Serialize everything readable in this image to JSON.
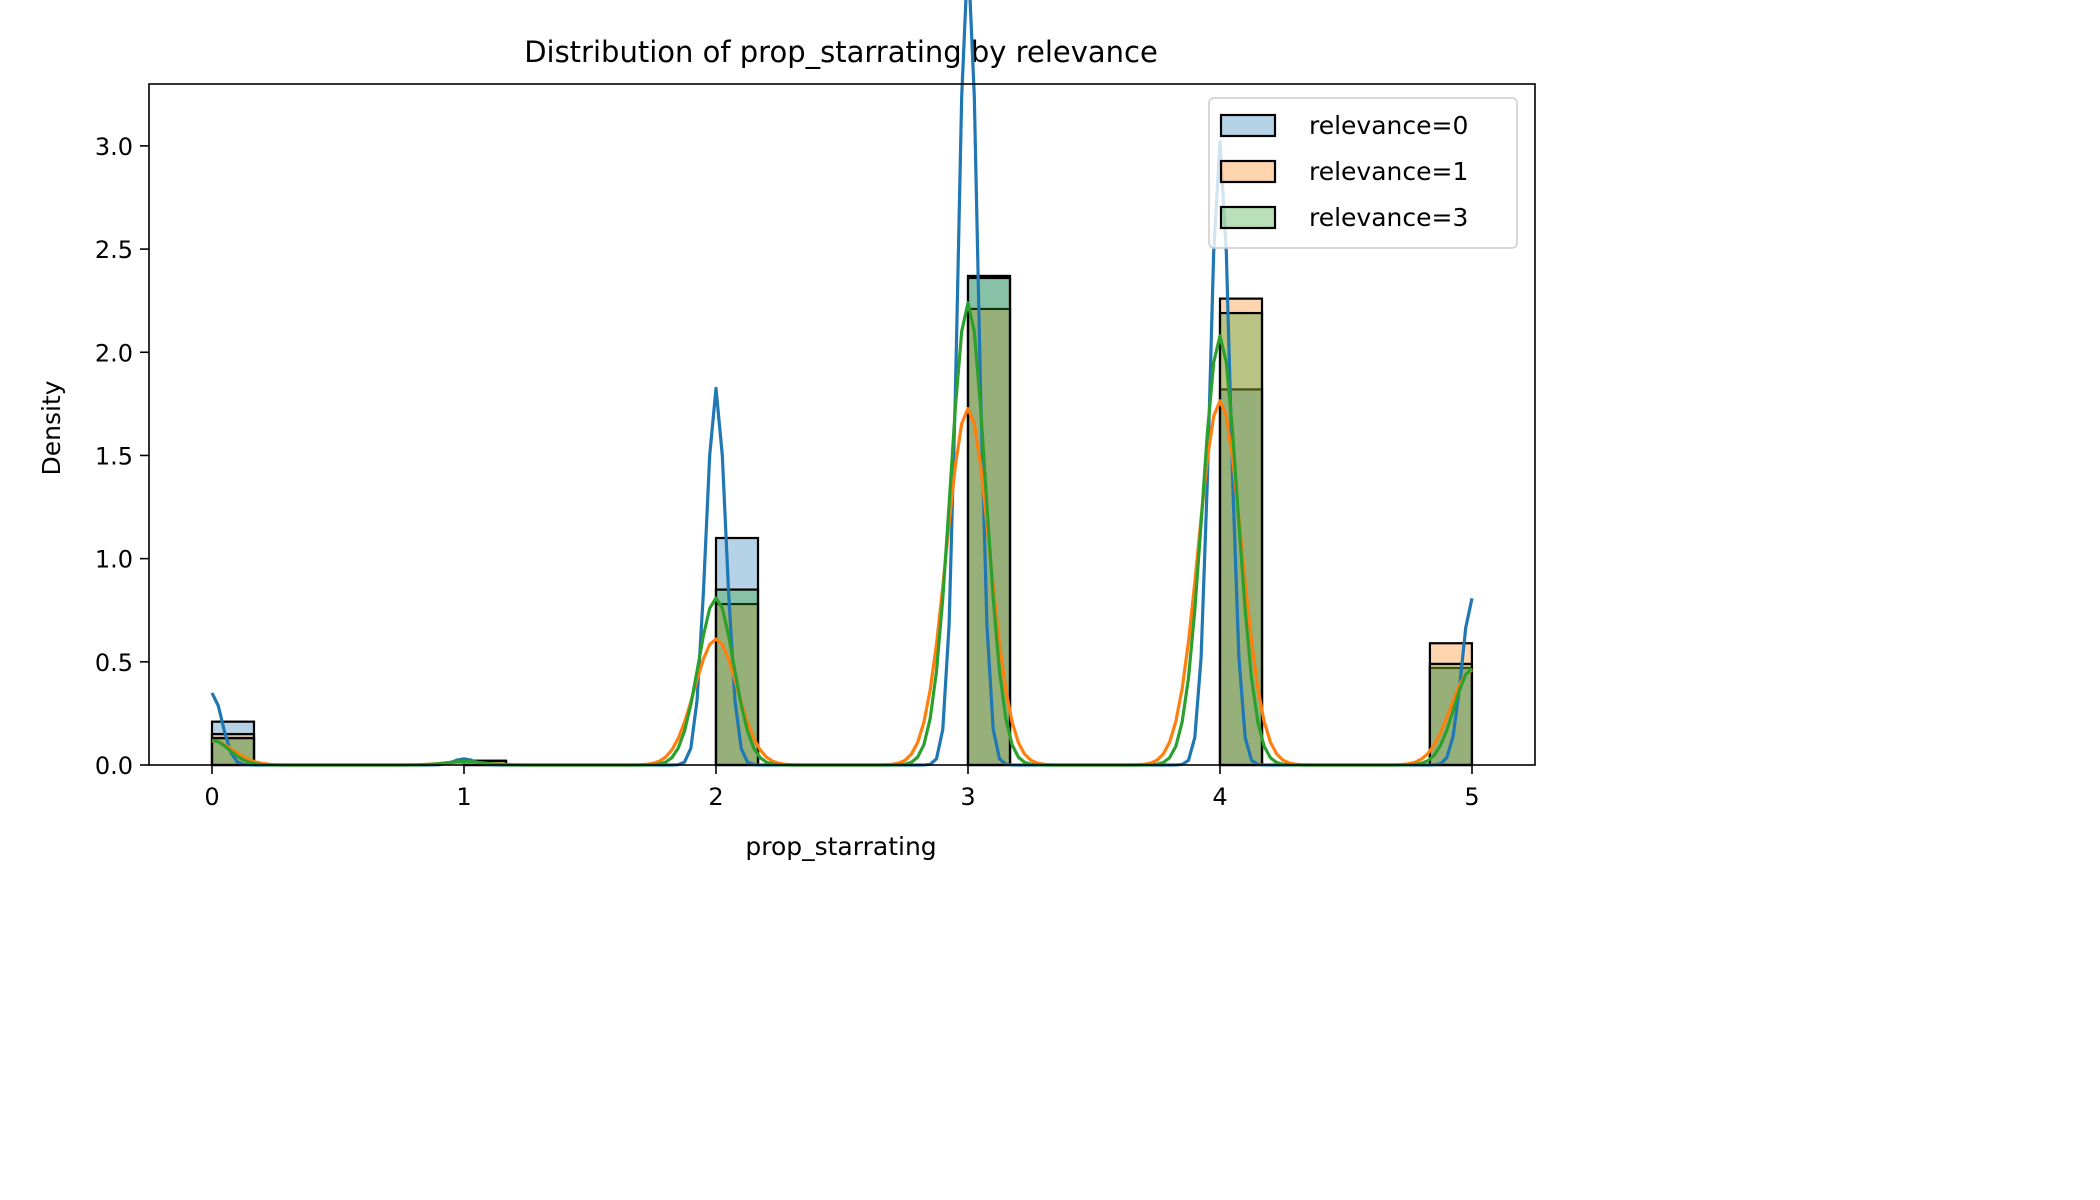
{
  "chart_data": {
    "type": "histogram",
    "title": "Distribution of prop_starrating by relevance",
    "xlabel": "prop_starrating",
    "ylabel": "Density",
    "xlim": [
      -0.25,
      5.25
    ],
    "ylim": [
      0,
      3.3
    ],
    "xticks": [
      0,
      1,
      2,
      3,
      4,
      5
    ],
    "yticks": [
      0.0,
      0.5,
      1.0,
      1.5,
      2.0,
      2.5,
      3.0
    ],
    "ytick_labels": [
      "0.0",
      "0.5",
      "1.0",
      "1.5",
      "2.0",
      "2.5",
      "3.0"
    ],
    "bin_width": 0.1667,
    "legend_position": "top-right",
    "series": [
      {
        "name": "relevance=0",
        "color": "#1f77b4",
        "fill_alpha": 0.33,
        "bins": [
          {
            "x": 0,
            "density": 0.21
          },
          {
            "x": 1,
            "density": 0.02
          },
          {
            "x": 2,
            "density": 1.1
          },
          {
            "x": 3,
            "density": 2.37
          },
          {
            "x": 4,
            "density": 1.82
          },
          {
            "x": 4.833,
            "density": 0.47
          }
        ],
        "kde": {
          "bandwidth": 0.04,
          "weights": [
            {
              "x": 0,
              "w": 0.035
            },
            {
              "x": 1,
              "w": 0.003
            },
            {
              "x": 2,
              "w": 0.183
            },
            {
              "x": 3,
              "w": 0.395
            },
            {
              "x": 4,
              "w": 0.303
            },
            {
              "x": 5,
              "w": 0.081
            }
          ]
        }
      },
      {
        "name": "relevance=1",
        "color": "#ff7f0e",
        "fill_alpha": 0.33,
        "bins": [
          {
            "x": 0,
            "density": 0.15
          },
          {
            "x": 1,
            "density": 0.02
          },
          {
            "x": 2,
            "density": 0.78
          },
          {
            "x": 3,
            "density": 2.21
          },
          {
            "x": 4,
            "density": 2.26
          },
          {
            "x": 4.833,
            "density": 0.59
          }
        ],
        "kde": {
          "bandwidth": 0.085,
          "weights": [
            {
              "x": 0,
              "w": 0.025
            },
            {
              "x": 1,
              "w": 0.003
            },
            {
              "x": 2,
              "w": 0.13
            },
            {
              "x": 3,
              "w": 0.368
            },
            {
              "x": 4,
              "w": 0.376
            },
            {
              "x": 5,
              "w": 0.098
            }
          ]
        }
      },
      {
        "name": "relevance=3",
        "color": "#2ca02c",
        "fill_alpha": 0.33,
        "bins": [
          {
            "x": 0,
            "density": 0.13
          },
          {
            "x": 1,
            "density": 0.02
          },
          {
            "x": 2,
            "density": 0.85
          },
          {
            "x": 3,
            "density": 2.36
          },
          {
            "x": 4,
            "density": 2.19
          },
          {
            "x": 4.833,
            "density": 0.49
          }
        ],
        "kde": {
          "bandwidth": 0.07,
          "weights": [
            {
              "x": 0,
              "w": 0.021
            },
            {
              "x": 1,
              "w": 0.003
            },
            {
              "x": 2,
              "w": 0.142
            },
            {
              "x": 3,
              "w": 0.393
            },
            {
              "x": 4,
              "w": 0.365
            },
            {
              "x": 5,
              "w": 0.082
            }
          ]
        }
      }
    ]
  }
}
